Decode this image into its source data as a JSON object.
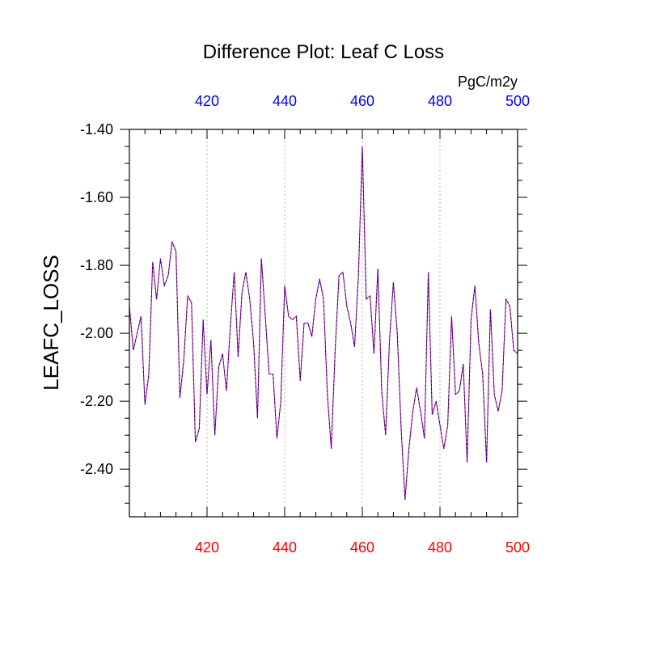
{
  "chart_data": {
    "type": "line",
    "title": "Difference Plot: Leaf C Loss",
    "units": "PgC/m2y",
    "ylabel": "LEAFC_LOSS",
    "xlabel": "",
    "xlim": [
      400,
      500
    ],
    "ylim": [
      -2.54,
      -1.4
    ],
    "grid": "vertical dotted lines at labeled x ticks",
    "legend": "none",
    "x_ticks_bottom": [
      {
        "value": 420,
        "label": "420"
      },
      {
        "value": 440,
        "label": "440"
      },
      {
        "value": 460,
        "label": "460"
      },
      {
        "value": 480,
        "label": "480"
      },
      {
        "value": 500,
        "label": "500"
      }
    ],
    "x_ticks_top": [
      {
        "value": 420,
        "label": "420"
      },
      {
        "value": 440,
        "label": "440"
      },
      {
        "value": 460,
        "label": "460"
      },
      {
        "value": 480,
        "label": "480"
      },
      {
        "value": 500,
        "label": "500"
      }
    ],
    "y_ticks": [
      {
        "value": -1.4,
        "label": "-1.40"
      },
      {
        "value": -1.6,
        "label": "-1.60"
      },
      {
        "value": -1.8,
        "label": "-1.80"
      },
      {
        "value": -2.0,
        "label": "-2.00"
      },
      {
        "value": -2.2,
        "label": "-2.20"
      },
      {
        "value": -2.4,
        "label": "-2.40"
      }
    ],
    "colors": {
      "bottom_axis_labels": "#ff0000",
      "top_axis_labels": "#0000ff",
      "series_a": "#ff0000",
      "series_b": "#0000ff",
      "grid": "#b0b0b0",
      "frame": "#000000"
    },
    "x": [
      400,
      401,
      402,
      403,
      404,
      405,
      406,
      407,
      408,
      409,
      410,
      411,
      412,
      413,
      414,
      415,
      416,
      417,
      418,
      419,
      420,
      421,
      422,
      423,
      424,
      425,
      426,
      427,
      428,
      429,
      430,
      431,
      432,
      433,
      434,
      435,
      436,
      437,
      438,
      439,
      440,
      441,
      442,
      443,
      444,
      445,
      446,
      447,
      448,
      449,
      450,
      451,
      452,
      453,
      454,
      455,
      456,
      457,
      458,
      459,
      460,
      461,
      462,
      463,
      464,
      465,
      466,
      467,
      468,
      469,
      470,
      471,
      472,
      473,
      474,
      475,
      476,
      477,
      478,
      479,
      480,
      481,
      482,
      483,
      484,
      485,
      486,
      487,
      488,
      489,
      490,
      491,
      492,
      493,
      494,
      495,
      496,
      497,
      498,
      499,
      500
    ],
    "series": [
      {
        "values": [
          -1.92,
          -2.05,
          -2.0,
          -1.95,
          -2.21,
          -2.12,
          -1.79,
          -1.9,
          -1.78,
          -1.86,
          -1.83,
          -1.73,
          -1.76,
          -2.19,
          -2.08,
          -1.89,
          -1.91,
          -2.32,
          -2.28,
          -1.96,
          -2.18,
          -2.02,
          -2.3,
          -2.1,
          -2.06,
          -2.17,
          -1.98,
          -1.82,
          -2.07,
          -1.88,
          -1.82,
          -1.9,
          -2.03,
          -2.25,
          -1.78,
          -1.95,
          -2.12,
          -2.12,
          -2.31,
          -2.2,
          -1.86,
          -1.95,
          -1.96,
          -1.95,
          -2.14,
          -1.97,
          -1.97,
          -2.01,
          -1.9,
          -1.84,
          -1.9,
          -2.18,
          -2.34,
          -2.05,
          -1.83,
          -1.82,
          -1.92,
          -1.97,
          -2.04,
          -1.83,
          -1.45,
          -1.9,
          -1.89,
          -2.06,
          -1.81,
          -2.17,
          -2.3,
          -2.02,
          -1.85,
          -2.0,
          -2.28,
          -2.49,
          -2.34,
          -2.23,
          -2.16,
          -2.23,
          -2.31,
          -1.82,
          -2.24,
          -2.2,
          -2.27,
          -2.34,
          -2.27,
          -1.95,
          -2.18,
          -2.17,
          -2.09,
          -2.38,
          -1.96,
          -1.86,
          -2.03,
          -2.12,
          -2.38,
          -1.93,
          -2.18,
          -2.23,
          -2.17,
          -1.9,
          -1.92,
          -2.05,
          -2.06
        ]
      }
    ]
  }
}
